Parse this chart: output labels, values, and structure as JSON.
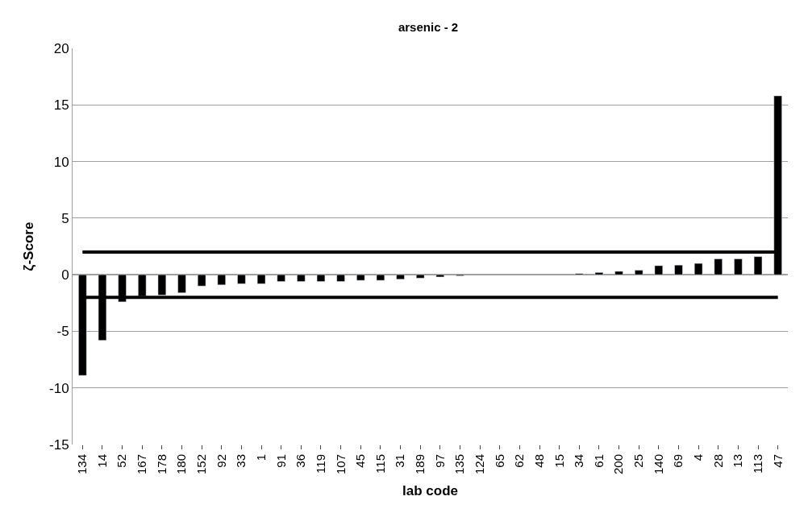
{
  "chart_data": {
    "type": "bar",
    "title": "arsenic - 2",
    "xlabel": "lab code",
    "ylabel": "ζ-Score",
    "categories": [
      "134",
      "14",
      "52",
      "167",
      "178",
      "180",
      "152",
      "92",
      "33",
      "1",
      "91",
      "36",
      "119",
      "107",
      "45",
      "115",
      "31",
      "189",
      "97",
      "135",
      "124",
      "65",
      "62",
      "48",
      "15",
      "34",
      "61",
      "200",
      "25",
      "140",
      "69",
      "4",
      "28",
      "13",
      "113",
      "47"
    ],
    "values": [
      -8.9,
      -5.8,
      -2.4,
      -1.9,
      -1.8,
      -1.6,
      -1.0,
      -0.9,
      -0.8,
      -0.8,
      -0.6,
      -0.6,
      -0.6,
      -0.6,
      -0.5,
      -0.5,
      -0.4,
      -0.3,
      -0.2,
      -0.1,
      null,
      null,
      null,
      null,
      null,
      0.1,
      0.2,
      0.3,
      0.4,
      0.8,
      0.85,
      1.0,
      1.4,
      1.4,
      1.6,
      15.8
    ],
    "color": "#000000",
    "ylim": [
      -15,
      20
    ],
    "yticks": [
      -15,
      -10,
      -5,
      0,
      5,
      10,
      15,
      20
    ],
    "grid": "y",
    "ref_lines": [
      {
        "axis": "y",
        "value": 2,
        "color": "#000000"
      },
      {
        "axis": "y",
        "value": -2,
        "color": "#000000"
      }
    ]
  }
}
